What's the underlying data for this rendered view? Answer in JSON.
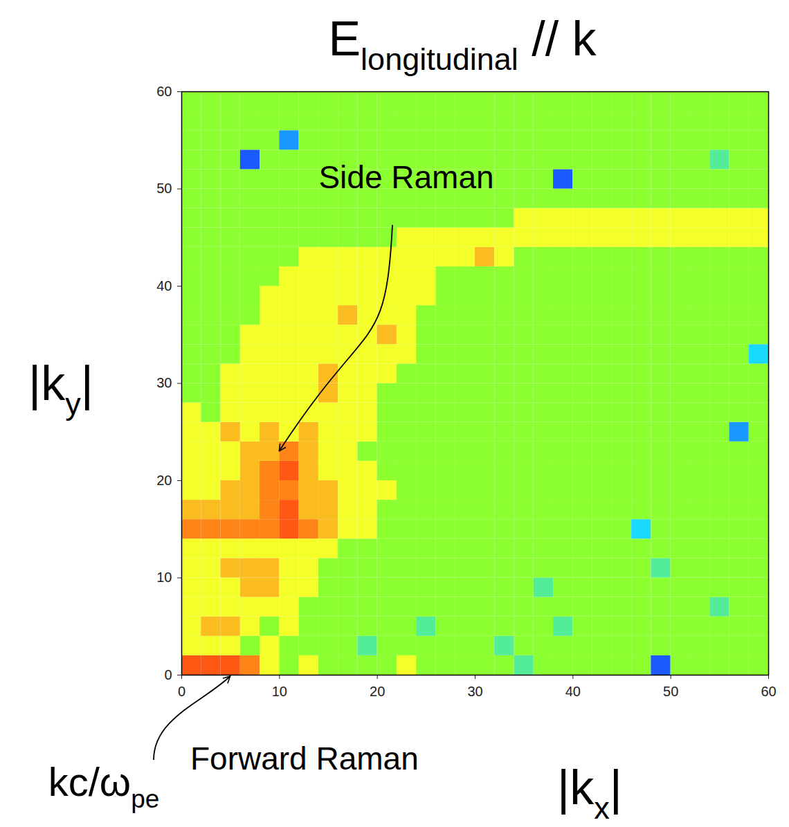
{
  "chart_data": {
    "type": "heatmap",
    "title": [
      {
        "text": "E"
      },
      {
        "text": "longitudinal",
        "sub": true
      },
      {
        "text": " // k"
      }
    ],
    "x_label": [
      {
        "text": "|k"
      },
      {
        "text": "x",
        "sub": true
      },
      {
        "text": "|"
      }
    ],
    "y_label": [
      {
        "text": "|k"
      },
      {
        "text": "y",
        "sub": true
      },
      {
        "text": "|"
      }
    ],
    "x_units": [
      {
        "text": "kc/ω"
      },
      {
        "text": "pe",
        "sub": true
      }
    ],
    "xlim": [
      0,
      60
    ],
    "ylim": [
      0,
      60
    ],
    "xticks": [
      0,
      10,
      20,
      30,
      40,
      50,
      60
    ],
    "yticks": [
      0,
      10,
      20,
      30,
      40,
      50,
      60
    ],
    "x_edges": [
      0,
      2,
      4,
      6,
      8,
      10,
      12,
      14,
      16,
      18,
      20,
      22,
      24,
      26,
      28,
      30,
      32,
      34,
      36,
      38,
      40,
      42,
      44,
      46,
      48,
      50,
      52,
      54,
      56,
      58,
      60
    ],
    "y_edges": [
      0,
      2,
      4,
      6,
      8,
      10,
      12,
      14,
      16,
      18,
      20,
      22,
      24,
      26,
      28,
      30,
      32,
      34,
      36,
      38,
      40,
      42,
      44,
      46,
      48,
      50,
      52,
      54,
      56,
      58,
      60
    ],
    "color_range": [
      0,
      10
    ],
    "cells": [
      [
        9,
        9,
        9,
        8,
        6,
        5,
        6,
        5,
        5,
        5,
        5,
        6,
        5,
        5,
        5,
        5,
        5,
        4,
        5,
        5,
        5,
        5,
        5,
        5,
        1,
        5,
        5,
        5,
        5,
        5
      ],
      [
        6,
        6,
        6,
        5,
        6,
        5,
        5,
        5,
        5,
        4,
        5,
        5,
        5,
        5,
        5,
        5,
        4,
        5,
        5,
        5,
        5,
        5,
        5,
        5,
        5,
        5,
        5,
        5,
        5,
        5
      ],
      [
        6,
        7,
        7,
        6,
        5,
        6,
        5,
        5,
        5,
        5,
        5,
        5,
        4,
        5,
        5,
        5,
        5,
        5,
        5,
        4,
        5,
        5,
        5,
        5,
        5,
        5,
        5,
        5,
        5,
        5
      ],
      [
        6,
        6,
        6,
        6,
        6,
        6,
        5,
        5,
        5,
        5,
        5,
        5,
        5,
        5,
        5,
        5,
        5,
        5,
        5,
        5,
        5,
        5,
        5,
        5,
        5,
        5,
        5,
        4,
        5,
        5
      ],
      [
        6,
        6,
        6,
        7,
        7,
        6,
        6,
        5,
        5,
        5,
        5,
        5,
        5,
        5,
        5,
        5,
        5,
        5,
        4,
        5,
        5,
        5,
        5,
        5,
        5,
        5,
        5,
        5,
        5,
        5
      ],
      [
        6,
        6,
        7,
        7,
        7,
        6,
        6,
        5,
        5,
        5,
        5,
        5,
        5,
        5,
        5,
        5,
        5,
        5,
        5,
        5,
        5,
        5,
        5,
        5,
        4,
        5,
        5,
        5,
        5,
        5
      ],
      [
        6,
        6,
        6,
        6,
        6,
        6,
        6,
        6,
        5,
        5,
        5,
        5,
        5,
        5,
        5,
        5,
        5,
        5,
        5,
        5,
        5,
        5,
        5,
        5,
        5,
        5,
        5,
        5,
        5,
        5
      ],
      [
        8,
        8,
        8,
        8,
        8,
        9,
        8,
        7,
        6,
        6,
        5,
        5,
        5,
        5,
        5,
        5,
        5,
        5,
        5,
        5,
        5,
        5,
        5,
        3,
        5,
        5,
        5,
        5,
        5,
        5
      ],
      [
        7,
        7,
        7,
        7,
        8,
        9,
        7,
        7,
        6,
        6,
        5,
        5,
        5,
        5,
        5,
        5,
        5,
        5,
        5,
        5,
        5,
        5,
        5,
        5,
        5,
        5,
        5,
        5,
        5,
        5
      ],
      [
        6,
        6,
        7,
        7,
        8,
        8,
        7,
        7,
        6,
        6,
        6,
        5,
        5,
        5,
        5,
        5,
        5,
        5,
        5,
        5,
        5,
        5,
        5,
        5,
        5,
        5,
        5,
        5,
        5,
        5
      ],
      [
        6,
        6,
        6,
        7,
        8,
        9,
        7,
        6,
        6,
        6,
        5,
        5,
        5,
        5,
        5,
        5,
        5,
        5,
        5,
        5,
        5,
        5,
        5,
        5,
        5,
        5,
        5,
        5,
        5,
        5
      ],
      [
        6,
        6,
        6,
        7,
        7,
        8,
        7,
        6,
        6,
        5,
        5,
        5,
        5,
        5,
        5,
        5,
        5,
        5,
        5,
        5,
        5,
        5,
        5,
        5,
        5,
        5,
        5,
        5,
        5,
        5
      ],
      [
        6,
        6,
        7,
        6,
        7,
        6,
        7,
        6,
        6,
        6,
        5,
        5,
        5,
        5,
        5,
        5,
        5,
        5,
        5,
        5,
        5,
        5,
        5,
        5,
        5,
        5,
        5,
        5,
        2,
        5
      ],
      [
        6,
        5,
        6,
        6,
        6,
        6,
        6,
        6,
        6,
        6,
        5,
        5,
        5,
        5,
        5,
        5,
        5,
        5,
        5,
        5,
        5,
        5,
        5,
        5,
        5,
        5,
        5,
        5,
        5,
        5
      ],
      [
        5,
        5,
        6,
        6,
        6,
        6,
        6,
        7,
        6,
        6,
        5,
        5,
        5,
        5,
        5,
        5,
        5,
        5,
        5,
        5,
        5,
        5,
        5,
        5,
        5,
        5,
        5,
        5,
        5,
        5
      ],
      [
        5,
        5,
        6,
        6,
        6,
        6,
        6,
        7,
        6,
        6,
        6,
        5,
        5,
        5,
        5,
        5,
        5,
        5,
        5,
        5,
        5,
        5,
        5,
        5,
        5,
        5,
        5,
        5,
        5,
        5
      ],
      [
        5,
        5,
        5,
        6,
        6,
        6,
        6,
        6,
        6,
        6,
        6,
        6,
        5,
        5,
        5,
        5,
        5,
        5,
        5,
        5,
        5,
        5,
        5,
        5,
        5,
        5,
        5,
        5,
        5,
        3
      ],
      [
        5,
        5,
        5,
        6,
        6,
        6,
        6,
        6,
        6,
        6,
        7,
        6,
        5,
        5,
        5,
        5,
        5,
        5,
        5,
        5,
        5,
        5,
        5,
        5,
        5,
        5,
        5,
        5,
        5,
        5
      ],
      [
        5,
        5,
        5,
        5,
        6,
        6,
        6,
        6,
        7,
        6,
        6,
        6,
        5,
        5,
        5,
        5,
        5,
        5,
        5,
        5,
        5,
        5,
        5,
        5,
        5,
        5,
        5,
        5,
        5,
        5
      ],
      [
        5,
        5,
        5,
        5,
        6,
        6,
        6,
        6,
        6,
        6,
        6,
        6,
        6,
        5,
        5,
        5,
        5,
        5,
        5,
        5,
        5,
        5,
        5,
        5,
        5,
        5,
        5,
        5,
        5,
        5
      ],
      [
        5,
        5,
        5,
        5,
        5,
        6,
        6,
        6,
        6,
        6,
        6,
        6,
        6,
        5,
        5,
        5,
        5,
        5,
        5,
        5,
        5,
        5,
        5,
        5,
        5,
        5,
        5,
        5,
        5,
        5
      ],
      [
        5,
        5,
        5,
        5,
        5,
        5,
        6,
        6,
        6,
        6,
        6,
        6,
        6,
        6,
        6,
        7,
        6,
        5,
        5,
        5,
        5,
        5,
        5,
        5,
        5,
        5,
        5,
        5,
        5,
        5
      ],
      [
        5,
        5,
        5,
        5,
        5,
        5,
        5,
        5,
        5,
        5,
        5,
        6,
        6,
        6,
        6,
        6,
        6,
        6,
        6,
        6,
        6,
        6,
        6,
        6,
        6,
        6,
        6,
        6,
        6,
        6
      ],
      [
        5,
        5,
        5,
        5,
        5,
        5,
        5,
        5,
        5,
        5,
        5,
        5,
        5,
        5,
        5,
        5,
        5,
        6,
        6,
        6,
        6,
        6,
        6,
        6,
        6,
        6,
        6,
        6,
        6,
        6
      ],
      [
        5,
        5,
        5,
        5,
        5,
        5,
        5,
        5,
        5,
        5,
        5,
        5,
        5,
        5,
        5,
        5,
        5,
        5,
        5,
        5,
        5,
        5,
        5,
        5,
        5,
        5,
        5,
        5,
        5,
        5
      ],
      [
        5,
        5,
        5,
        5,
        5,
        5,
        5,
        5,
        5,
        5,
        5,
        5,
        5,
        5,
        5,
        5,
        5,
        5,
        5,
        1,
        5,
        5,
        5,
        5,
        5,
        5,
        5,
        5,
        5,
        5
      ],
      [
        5,
        5,
        5,
        1,
        5,
        5,
        5,
        5,
        5,
        5,
        5,
        5,
        5,
        5,
        5,
        5,
        5,
        5,
        5,
        5,
        5,
        5,
        5,
        5,
        5,
        5,
        5,
        4,
        5,
        5
      ],
      [
        5,
        5,
        5,
        5,
        5,
        2,
        5,
        5,
        5,
        5,
        5,
        5,
        5,
        5,
        5,
        5,
        5,
        5,
        5,
        5,
        5,
        5,
        5,
        5,
        5,
        5,
        5,
        5,
        5,
        5
      ],
      [
        5,
        5,
        5,
        5,
        5,
        5,
        5,
        5,
        5,
        5,
        5,
        5,
        5,
        5,
        5,
        5,
        5,
        5,
        5,
        5,
        5,
        5,
        5,
        5,
        5,
        5,
        5,
        5,
        5,
        5
      ],
      [
        5,
        5,
        5,
        5,
        5,
        5,
        5,
        5,
        5,
        5,
        5,
        5,
        5,
        5,
        5,
        5,
        5,
        5,
        5,
        5,
        5,
        5,
        5,
        5,
        5,
        5,
        5,
        5,
        5,
        5
      ]
    ],
    "annotations": [
      {
        "text": "Side Raman",
        "xy": [
          10,
          23
        ]
      },
      {
        "text": "Forward Raman",
        "xy": [
          5,
          0
        ]
      }
    ]
  }
}
